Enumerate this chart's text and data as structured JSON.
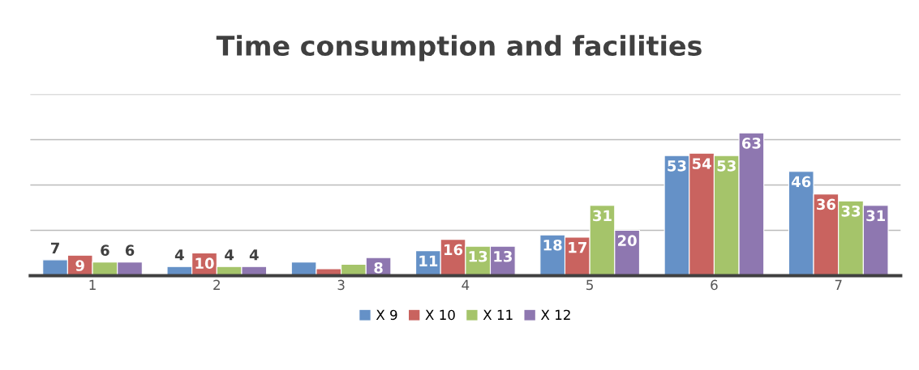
{
  "chart_data": {
    "type": "bar",
    "title": "Time consumption and facilities",
    "categories": [
      "1",
      "2",
      "3",
      "4",
      "5",
      "6",
      "7"
    ],
    "series": [
      {
        "name": "X 9",
        "color": "#6591c7",
        "values": [
          7,
          4,
          6,
          11,
          18,
          53,
          46
        ],
        "value_labels": [
          "7",
          "4",
          null,
          "11",
          "18",
          "53",
          "46"
        ]
      },
      {
        "name": "X 10",
        "color": "#c9635f",
        "values": [
          9,
          10,
          3,
          16,
          17,
          54,
          36
        ],
        "value_labels": [
          "9",
          "10",
          null,
          "16",
          "17",
          "54",
          "36"
        ]
      },
      {
        "name": "X 11",
        "color": "#a5c46a",
        "values": [
          6,
          4,
          5,
          13,
          31,
          53,
          33
        ],
        "value_labels": [
          "6",
          "4",
          null,
          "13",
          "31",
          "53",
          "33"
        ]
      },
      {
        "name": "X 12",
        "color": "#8e77b0",
        "values": [
          6,
          4,
          8,
          13,
          20,
          63,
          31
        ],
        "value_labels": [
          "6",
          "4",
          "8",
          "13",
          "20",
          "63",
          "31"
        ]
      }
    ],
    "ylim": [
      0,
      80
    ],
    "yticks": [
      {
        "value": 0,
        "label": null
      },
      {
        "value": 20,
        "label": null
      },
      {
        "value": 40,
        "label": null
      },
      {
        "value": 60,
        "label": null
      },
      {
        "value": 80,
        "label": null
      }
    ],
    "tick_labels": "x",
    "grid": "y",
    "legend": "bottom"
  }
}
